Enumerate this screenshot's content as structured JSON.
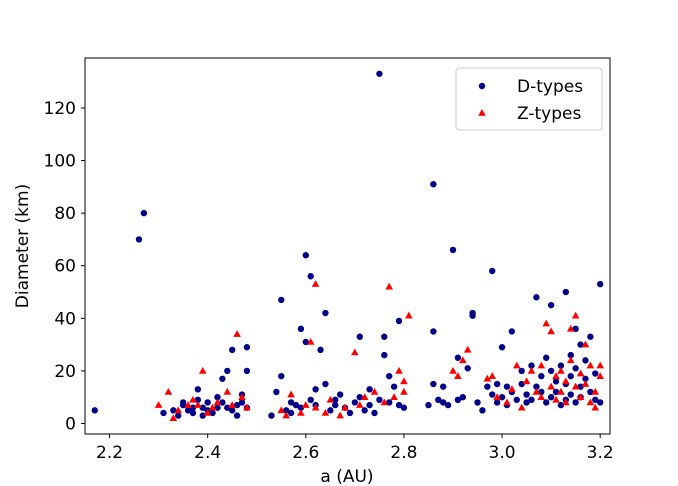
{
  "chart_data": {
    "type": "scatter",
    "xlabel": "a (AU)",
    "ylabel": "Diameter (km)",
    "xlim": [
      2.15,
      3.22
    ],
    "ylim": [
      -4,
      139
    ],
    "xticks": [
      2.2,
      2.4,
      2.6,
      2.8,
      3.0,
      3.2
    ],
    "xtick_labels": [
      "2.2",
      "2.4",
      "2.6",
      "2.8",
      "3.0",
      "3.2"
    ],
    "yticks": [
      0,
      20,
      40,
      60,
      80,
      100,
      120
    ],
    "ytick_labels": [
      "0",
      "20",
      "40",
      "60",
      "80",
      "100",
      "120"
    ],
    "grid": false,
    "legend_position": "top-right",
    "series": [
      {
        "name": "D-types",
        "marker": "circle",
        "color": "#00008b",
        "points": [
          [
            2.17,
            5
          ],
          [
            2.26,
            70
          ],
          [
            2.27,
            80
          ],
          [
            2.31,
            4
          ],
          [
            2.33,
            5
          ],
          [
            2.34,
            3
          ],
          [
            2.35,
            7
          ],
          [
            2.35,
            8
          ],
          [
            2.36,
            5
          ],
          [
            2.37,
            6
          ],
          [
            2.37,
            4
          ],
          [
            2.38,
            9
          ],
          [
            2.38,
            13
          ],
          [
            2.39,
            3
          ],
          [
            2.39,
            6
          ],
          [
            2.4,
            8
          ],
          [
            2.4,
            5
          ],
          [
            2.41,
            4
          ],
          [
            2.42,
            6
          ],
          [
            2.42,
            10
          ],
          [
            2.43,
            17
          ],
          [
            2.43,
            8
          ],
          [
            2.44,
            6
          ],
          [
            2.44,
            20
          ],
          [
            2.45,
            28
          ],
          [
            2.45,
            5
          ],
          [
            2.46,
            3
          ],
          [
            2.46,
            7
          ],
          [
            2.47,
            11
          ],
          [
            2.47,
            8
          ],
          [
            2.48,
            20
          ],
          [
            2.48,
            29
          ],
          [
            2.48,
            6
          ],
          [
            2.53,
            3
          ],
          [
            2.54,
            12
          ],
          [
            2.55,
            47
          ],
          [
            2.55,
            18
          ],
          [
            2.56,
            5
          ],
          [
            2.57,
            4
          ],
          [
            2.57,
            8
          ],
          [
            2.58,
            7
          ],
          [
            2.59,
            6
          ],
          [
            2.59,
            36
          ],
          [
            2.6,
            64
          ],
          [
            2.6,
            31
          ],
          [
            2.61,
            9
          ],
          [
            2.61,
            56
          ],
          [
            2.62,
            13
          ],
          [
            2.62,
            7
          ],
          [
            2.63,
            28
          ],
          [
            2.64,
            42
          ],
          [
            2.64,
            15
          ],
          [
            2.65,
            5
          ],
          [
            2.66,
            9
          ],
          [
            2.66,
            7
          ],
          [
            2.67,
            11
          ],
          [
            2.68,
            6
          ],
          [
            2.69,
            4
          ],
          [
            2.7,
            8
          ],
          [
            2.71,
            33
          ],
          [
            2.71,
            10
          ],
          [
            2.72,
            5
          ],
          [
            2.73,
            7
          ],
          [
            2.73,
            13
          ],
          [
            2.74,
            4
          ],
          [
            2.75,
            133
          ],
          [
            2.75,
            9
          ],
          [
            2.76,
            33
          ],
          [
            2.76,
            26
          ],
          [
            2.77,
            18
          ],
          [
            2.77,
            8
          ],
          [
            2.78,
            14
          ],
          [
            2.79,
            39
          ],
          [
            2.79,
            7
          ],
          [
            2.8,
            6
          ],
          [
            2.85,
            7
          ],
          [
            2.86,
            91
          ],
          [
            2.86,
            35
          ],
          [
            2.86,
            15
          ],
          [
            2.87,
            9
          ],
          [
            2.88,
            8
          ],
          [
            2.88,
            14
          ],
          [
            2.89,
            7
          ],
          [
            2.9,
            66
          ],
          [
            2.91,
            25
          ],
          [
            2.91,
            9
          ],
          [
            2.92,
            10
          ],
          [
            2.93,
            21
          ],
          [
            2.94,
            42
          ],
          [
            2.94,
            41
          ],
          [
            2.95,
            8
          ],
          [
            2.96,
            5
          ],
          [
            2.97,
            14
          ],
          [
            2.98,
            58
          ],
          [
            2.98,
            11
          ],
          [
            2.99,
            8
          ],
          [
            2.99,
            15
          ],
          [
            3.0,
            29
          ],
          [
            3.0,
            10
          ],
          [
            3.01,
            14
          ],
          [
            3.01,
            7
          ],
          [
            3.02,
            35
          ],
          [
            3.02,
            12
          ],
          [
            3.03,
            9
          ],
          [
            3.04,
            20
          ],
          [
            3.04,
            15
          ],
          [
            3.05,
            11
          ],
          [
            3.05,
            8
          ],
          [
            3.06,
            22
          ],
          [
            3.06,
            9
          ],
          [
            3.07,
            48
          ],
          [
            3.07,
            14
          ],
          [
            3.08,
            12
          ],
          [
            3.08,
            18
          ],
          [
            3.09,
            25
          ],
          [
            3.09,
            8
          ],
          [
            3.1,
            45
          ],
          [
            3.1,
            20
          ],
          [
            3.1,
            10
          ],
          [
            3.11,
            16
          ],
          [
            3.11,
            12
          ],
          [
            3.12,
            7
          ],
          [
            3.12,
            22
          ],
          [
            3.13,
            50
          ],
          [
            3.13,
            15
          ],
          [
            3.13,
            9
          ],
          [
            3.14,
            18
          ],
          [
            3.14,
            26
          ],
          [
            3.14,
            11
          ],
          [
            3.15,
            36
          ],
          [
            3.15,
            8
          ],
          [
            3.15,
            21
          ],
          [
            3.16,
            30
          ],
          [
            3.16,
            14
          ],
          [
            3.16,
            10
          ],
          [
            3.17,
            24
          ],
          [
            3.17,
            17
          ],
          [
            3.18,
            33
          ],
          [
            3.18,
            12
          ],
          [
            3.19,
            9
          ],
          [
            3.19,
            19
          ],
          [
            3.2,
            53
          ],
          [
            3.2,
            8
          ]
        ]
      },
      {
        "name": "Z-types",
        "marker": "triangle",
        "color": "#ff0000",
        "points": [
          [
            2.3,
            7
          ],
          [
            2.32,
            12
          ],
          [
            2.33,
            2
          ],
          [
            2.34,
            5
          ],
          [
            2.36,
            7
          ],
          [
            2.37,
            9
          ],
          [
            2.38,
            7
          ],
          [
            2.39,
            20
          ],
          [
            2.4,
            4
          ],
          [
            2.41,
            6
          ],
          [
            2.42,
            8
          ],
          [
            2.44,
            12
          ],
          [
            2.45,
            7
          ],
          [
            2.46,
            34
          ],
          [
            2.47,
            10
          ],
          [
            2.48,
            6
          ],
          [
            2.55,
            5
          ],
          [
            2.56,
            3
          ],
          [
            2.57,
            11
          ],
          [
            2.59,
            4
          ],
          [
            2.6,
            7
          ],
          [
            2.61,
            31
          ],
          [
            2.62,
            53
          ],
          [
            2.62,
            6
          ],
          [
            2.64,
            4
          ],
          [
            2.65,
            9
          ],
          [
            2.67,
            3
          ],
          [
            2.68,
            6
          ],
          [
            2.7,
            27
          ],
          [
            2.71,
            7
          ],
          [
            2.72,
            10
          ],
          [
            2.74,
            12
          ],
          [
            2.76,
            8
          ],
          [
            2.77,
            52
          ],
          [
            2.78,
            10
          ],
          [
            2.79,
            20
          ],
          [
            2.8,
            16
          ],
          [
            2.8,
            12
          ],
          [
            2.81,
            41
          ],
          [
            2.9,
            20
          ],
          [
            2.91,
            18
          ],
          [
            2.92,
            24
          ],
          [
            2.93,
            28
          ],
          [
            2.97,
            17
          ],
          [
            2.98,
            18
          ],
          [
            2.99,
            10
          ],
          [
            3.01,
            8
          ],
          [
            3.02,
            13
          ],
          [
            3.03,
            22
          ],
          [
            3.04,
            6
          ],
          [
            3.05,
            16
          ],
          [
            3.06,
            20
          ],
          [
            3.07,
            12
          ],
          [
            3.08,
            22
          ],
          [
            3.08,
            10
          ],
          [
            3.09,
            38
          ],
          [
            3.1,
            35
          ],
          [
            3.1,
            14
          ],
          [
            3.11,
            18
          ],
          [
            3.11,
            9
          ],
          [
            3.12,
            20
          ],
          [
            3.12,
            12
          ],
          [
            3.13,
            16
          ],
          [
            3.13,
            8
          ],
          [
            3.14,
            24
          ],
          [
            3.14,
            36
          ],
          [
            3.15,
            41
          ],
          [
            3.15,
            14
          ],
          [
            3.16,
            19
          ],
          [
            3.16,
            10
          ],
          [
            3.17,
            30
          ],
          [
            3.17,
            15
          ],
          [
            3.18,
            22
          ],
          [
            3.18,
            8
          ],
          [
            3.19,
            12
          ],
          [
            3.19,
            6
          ],
          [
            3.2,
            22
          ],
          [
            3.2,
            18
          ]
        ]
      }
    ]
  }
}
